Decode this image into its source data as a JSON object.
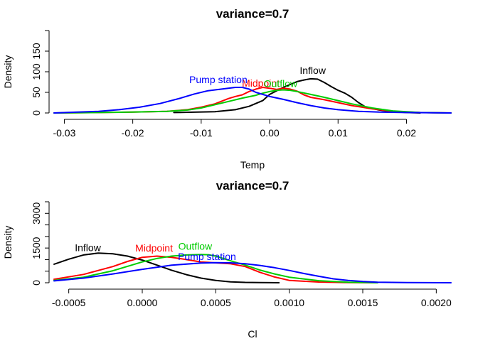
{
  "chart_data": [
    {
      "type": "line",
      "title": "variance=0.7",
      "xlabel": "Temp",
      "ylabel": "Density",
      "xlim": [
        -0.0315,
        0.0265
      ],
      "ylim": [
        0,
        200
      ],
      "x_ticks": [
        {
          "value": -0.03,
          "label": "-0.03"
        },
        {
          "value": -0.02,
          "label": "-0.02"
        },
        {
          "value": -0.01,
          "label": "-0.01"
        },
        {
          "value": 0.0,
          "label": "0.00"
        },
        {
          "value": 0.01,
          "label": "0.01"
        },
        {
          "value": 0.02,
          "label": "0.02"
        }
      ],
      "y_ticks": [
        {
          "value": 0,
          "label": "0"
        },
        {
          "value": 50,
          "label": "50"
        },
        {
          "value": 100,
          "label": "100"
        },
        {
          "value": 150,
          "label": "150"
        },
        {
          "value": 200,
          "label": ""
        }
      ],
      "grid": false,
      "series": [
        {
          "name": "Inflow",
          "color": "#000000",
          "x": [
            -0.014,
            -0.008,
            -0.005,
            -0.003,
            -0.001,
            0.0,
            0.002,
            0.004,
            0.005,
            0.006,
            0.007,
            0.008,
            0.009,
            0.01,
            0.011,
            0.012,
            0.013,
            0.014,
            0.016,
            0.018,
            0.02,
            0.022
          ],
          "y": [
            1,
            3,
            8,
            16,
            30,
            45,
            62,
            76,
            80,
            83,
            82,
            74,
            64,
            55,
            48,
            38,
            25,
            15,
            7,
            3,
            1,
            0
          ],
          "label_at": [
            0.0063,
            95
          ]
        },
        {
          "name": "Midpoint",
          "color": "#ff0000",
          "x": [
            -0.0315,
            -0.025,
            -0.02,
            -0.015,
            -0.012,
            -0.01,
            -0.008,
            -0.006,
            -0.005,
            -0.004,
            -0.003,
            -0.002,
            -0.001,
            0.0,
            0.001,
            0.002,
            0.003,
            0.004,
            0.005,
            0.006,
            0.008,
            0.01,
            0.012,
            0.015,
            0.018,
            0.022,
            0.0265
          ],
          "y": [
            0,
            1,
            2,
            4,
            8,
            14,
            22,
            35,
            40,
            44,
            52,
            58,
            62,
            60,
            57,
            60,
            58,
            53,
            44,
            38,
            32,
            25,
            18,
            10,
            4,
            1,
            0
          ],
          "label_at": [
            -0.0013,
            64
          ]
        },
        {
          "name": "Outflow",
          "color": "#00cc00",
          "x": [
            -0.0315,
            -0.025,
            -0.02,
            -0.015,
            -0.012,
            -0.01,
            -0.008,
            -0.006,
            -0.004,
            -0.002,
            -0.001,
            0.0,
            0.001,
            0.002,
            0.003,
            0.004,
            0.006,
            0.008,
            0.01,
            0.012,
            0.015,
            0.018,
            0.022,
            0.0265
          ],
          "y": [
            0,
            1,
            2,
            4,
            7,
            12,
            20,
            28,
            36,
            43,
            48,
            52,
            55,
            56,
            55,
            52,
            45,
            38,
            30,
            22,
            12,
            5,
            1,
            0
          ],
          "label_at": [
            0.0016,
            63
          ]
        },
        {
          "name": "Pump station",
          "color": "#0000ff",
          "x": [
            -0.0315,
            -0.028,
            -0.025,
            -0.022,
            -0.019,
            -0.016,
            -0.013,
            -0.011,
            -0.009,
            -0.007,
            -0.005,
            -0.004,
            -0.003,
            -0.002,
            0.0,
            0.002,
            0.004,
            0.006,
            0.008,
            0.01,
            0.013,
            0.016,
            0.02,
            0.0265
          ],
          "y": [
            0,
            2,
            4,
            8,
            14,
            23,
            36,
            46,
            54,
            58,
            62,
            62,
            58,
            50,
            40,
            33,
            25,
            18,
            12,
            8,
            4,
            2,
            1,
            0
          ],
          "label_at": [
            -0.0075,
            72
          ]
        }
      ]
    },
    {
      "type": "line",
      "title": "variance=0.7",
      "xlabel": "Cl",
      "ylabel": "Density",
      "xlim": [
        -0.0006,
        0.0021
      ],
      "ylim": [
        0,
        3500
      ],
      "x_ticks": [
        {
          "value": -0.0005,
          "label": "-0.0005"
        },
        {
          "value": 0.0,
          "label": "0.0000"
        },
        {
          "value": 0.0005,
          "label": "0.0005"
        },
        {
          "value": 0.001,
          "label": "0.0010"
        },
        {
          "value": 0.0015,
          "label": "0.0015"
        },
        {
          "value": 0.002,
          "label": "0.0020"
        }
      ],
      "y_ticks": [
        {
          "value": 0,
          "label": "0"
        },
        {
          "value": 500,
          "label": ""
        },
        {
          "value": 1000,
          "label": ""
        },
        {
          "value": 1500,
          "label": "1500"
        },
        {
          "value": 2000,
          "label": ""
        },
        {
          "value": 2500,
          "label": ""
        },
        {
          "value": 3000,
          "label": "3000"
        },
        {
          "value": 3500,
          "label": ""
        }
      ],
      "grid": false,
      "series": [
        {
          "name": "Inflow",
          "color": "#000000",
          "x": [
            -0.0006,
            -0.0005,
            -0.0004,
            -0.0003,
            -0.0002,
            -0.0001,
            0.0,
            0.0001,
            0.0002,
            0.0003,
            0.0004,
            0.0005,
            0.0006,
            0.0007,
            0.0008,
            0.00093
          ],
          "y": [
            800,
            1020,
            1200,
            1280,
            1250,
            1150,
            980,
            760,
            540,
            350,
            200,
            100,
            40,
            15,
            5,
            0
          ],
          "label_at": [
            -0.00037,
            1370
          ]
        },
        {
          "name": "Midpoint",
          "color": "#ff0000",
          "x": [
            -0.0006,
            -0.0004,
            -0.0002,
            -0.0001,
            0.0,
            0.0001,
            0.0002,
            0.0003,
            0.0004,
            0.0005,
            0.0006,
            0.0007,
            0.0008,
            0.0009,
            0.001,
            0.0012,
            0.0014,
            0.0016
          ],
          "y": [
            150,
            360,
            700,
            920,
            1100,
            1150,
            1100,
            1000,
            900,
            860,
            820,
            700,
            450,
            250,
            100,
            30,
            8,
            0
          ],
          "label_at": [
            8e-05,
            1350
          ]
        },
        {
          "name": "Outflow",
          "color": "#00cc00",
          "x": [
            -0.0006,
            -0.0004,
            -0.0002,
            0.0,
            0.0001,
            0.0002,
            0.0003,
            0.0004,
            0.00045,
            0.0005,
            0.0006,
            0.0007,
            0.0008,
            0.0009,
            0.001,
            0.0012,
            0.0014,
            0.0016
          ],
          "y": [
            100,
            240,
            520,
            900,
            1050,
            1150,
            1200,
            1220,
            1210,
            1150,
            950,
            760,
            550,
            380,
            240,
            90,
            25,
            0
          ],
          "label_at": [
            0.00036,
            1420
          ]
        },
        {
          "name": "Pump station",
          "color": "#0000ff",
          "x": [
            -0.0006,
            -0.0004,
            -0.0002,
            0.0,
            0.0002,
            0.0004,
            0.0005,
            0.0006,
            0.0007,
            0.0008,
            0.0009,
            0.001,
            0.0011,
            0.0012,
            0.0013,
            0.0014,
            0.0015,
            0.0016,
            0.0018,
            0.0021
          ],
          "y": [
            80,
            200,
            380,
            580,
            760,
            850,
            870,
            860,
            820,
            750,
            650,
            530,
            400,
            280,
            170,
            100,
            55,
            25,
            5,
            0
          ],
          "label_at": [
            0.00044,
            980
          ]
        }
      ]
    }
  ]
}
